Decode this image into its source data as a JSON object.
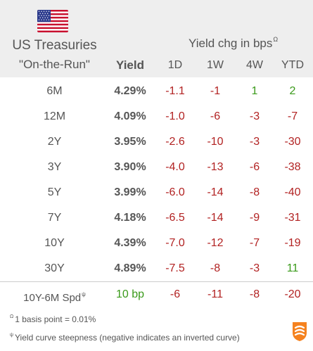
{
  "header": {
    "title": "US Treasuries",
    "subtitle": "\"On-the-Run\"",
    "change_title": "Yield chg in bps",
    "change_title_marker": "Ω",
    "columns": {
      "yield": "Yield",
      "d1": "1D",
      "w1": "1W",
      "w4": "4W",
      "ytd": "YTD"
    }
  },
  "rows": [
    {
      "label": "6M",
      "yield": "4.29%",
      "d1": "-1.1",
      "w1": "-1",
      "w4": "1",
      "ytd": "2"
    },
    {
      "label": "12M",
      "yield": "4.09%",
      "d1": "-1.0",
      "w1": "-6",
      "w4": "-3",
      "ytd": "-7"
    },
    {
      "label": "2Y",
      "yield": "3.95%",
      "d1": "-2.6",
      "w1": "-10",
      "w4": "-3",
      "ytd": "-30"
    },
    {
      "label": "3Y",
      "yield": "3.90%",
      "d1": "-4.0",
      "w1": "-13",
      "w4": "-6",
      "ytd": "-38"
    },
    {
      "label": "5Y",
      "yield": "3.99%",
      "d1": "-6.0",
      "w1": "-14",
      "w4": "-8",
      "ytd": "-40"
    },
    {
      "label": "7Y",
      "yield": "4.18%",
      "d1": "-6.5",
      "w1": "-14",
      "w4": "-9",
      "ytd": "-31"
    },
    {
      "label": "10Y",
      "yield": "4.39%",
      "d1": "-7.0",
      "w1": "-12",
      "w4": "-7",
      "ytd": "-19"
    },
    {
      "label": "30Y",
      "yield": "4.89%",
      "d1": "-7.5",
      "w1": "-8",
      "w4": "-3",
      "ytd": "11"
    }
  ],
  "spread": {
    "label": "10Y-6M Spd",
    "marker": "ψ",
    "yield": "10 bp",
    "d1": "-6",
    "w1": "-11",
    "w4": "-8",
    "ytd": "-20"
  },
  "notes": {
    "basis_point_marker": "Ω",
    "basis_point": "1 basis point = 0.01%",
    "steepness_marker": "ψ",
    "steepness": "Yield curve steepness (negative indicates an inverted curve)"
  },
  "colors": {
    "negative": "#b22222",
    "positive": "#3a9a1a",
    "header_bg": "#eeeeee",
    "logo": "#f5821f"
  },
  "icons": {
    "flag": "us-flag-icon",
    "logo": "brand-logo-icon"
  }
}
